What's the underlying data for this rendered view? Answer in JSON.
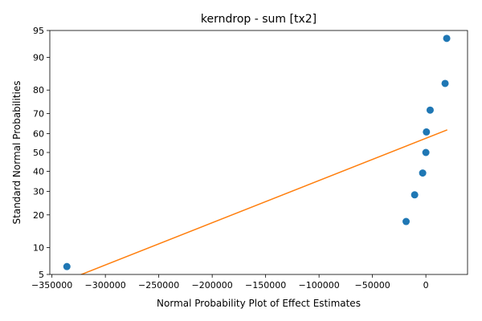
{
  "chart_data": {
    "type": "scatter",
    "title": "kerndrop - sum [tx2]",
    "xlabel": "Normal Probability Plot of Effect Estimates",
    "ylabel": "Standard Normal Probabilities",
    "xlim": [
      -352000,
      39000
    ],
    "ylim": [
      5,
      95
    ],
    "y_scale": "probability",
    "x_ticks": [
      -350000,
      -300000,
      -250000,
      -200000,
      -150000,
      -100000,
      -50000,
      0
    ],
    "x_tick_labels": [
      "−350000",
      "−300000",
      "−250000",
      "−200000",
      "−150000",
      "−100000",
      "−50000",
      "0"
    ],
    "y_ticks": [
      5,
      10,
      20,
      30,
      40,
      50,
      60,
      70,
      80,
      90,
      95
    ],
    "y_tick_labels": [
      "5",
      "10",
      "20",
      "30",
      "40",
      "50",
      "60",
      "70",
      "80",
      "90",
      "95"
    ],
    "series": [
      {
        "kind": "points",
        "color": "#1f77b4",
        "x": [
          -336000,
          -18500,
          -10500,
          -3000,
          0,
          500,
          4000,
          18000,
          19500
        ],
        "y": [
          6.2,
          17.6,
          28.4,
          39.1,
          50,
          60.9,
          71.6,
          82.4,
          93.8
        ]
      },
      {
        "kind": "line",
        "color": "#ff7f0e",
        "x": [
          -325000,
          20000
        ],
        "y": [
          4.85,
          62
        ]
      }
    ],
    "grid": false,
    "legend": "none"
  }
}
